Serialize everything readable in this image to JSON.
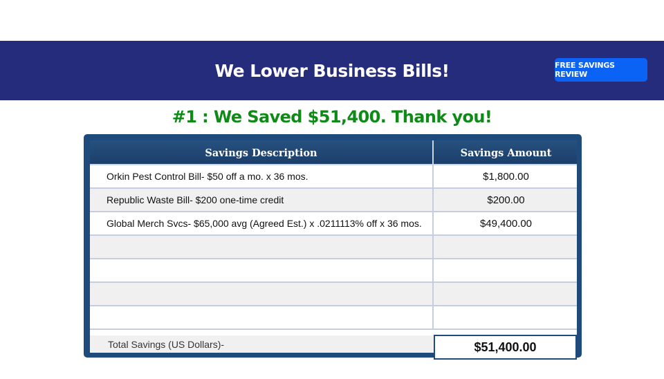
{
  "banner": {
    "title": "We Lower Business Bills!",
    "cta_label": "FREE SAVINGS REVIEW",
    "background_color": "#262c7c",
    "cta_color": "#0b63f6"
  },
  "headline": "#1 : We Saved $51,400. Thank you!",
  "table": {
    "headers": {
      "description": "Savings Description",
      "amount": "Savings Amount"
    },
    "rows": [
      {
        "description": "Orkin Pest Control Bill- $50 off a mo. x 36 mos.",
        "amount": "$1,800.00"
      },
      {
        "description": "Republic Waste Bill- $200 one-time credit",
        "amount": "$200.00"
      },
      {
        "description": "Global Merch Svcs- $65,000 avg (Agreed Est.) x .0211113% off x 36 mos.",
        "amount": "$49,400.00"
      },
      {
        "description": "",
        "amount": ""
      },
      {
        "description": "",
        "amount": ""
      },
      {
        "description": "",
        "amount": ""
      },
      {
        "description": "",
        "amount": ""
      }
    ],
    "total": {
      "label": "Total Savings (US Dollars)-",
      "amount": "$51,400.00"
    }
  }
}
